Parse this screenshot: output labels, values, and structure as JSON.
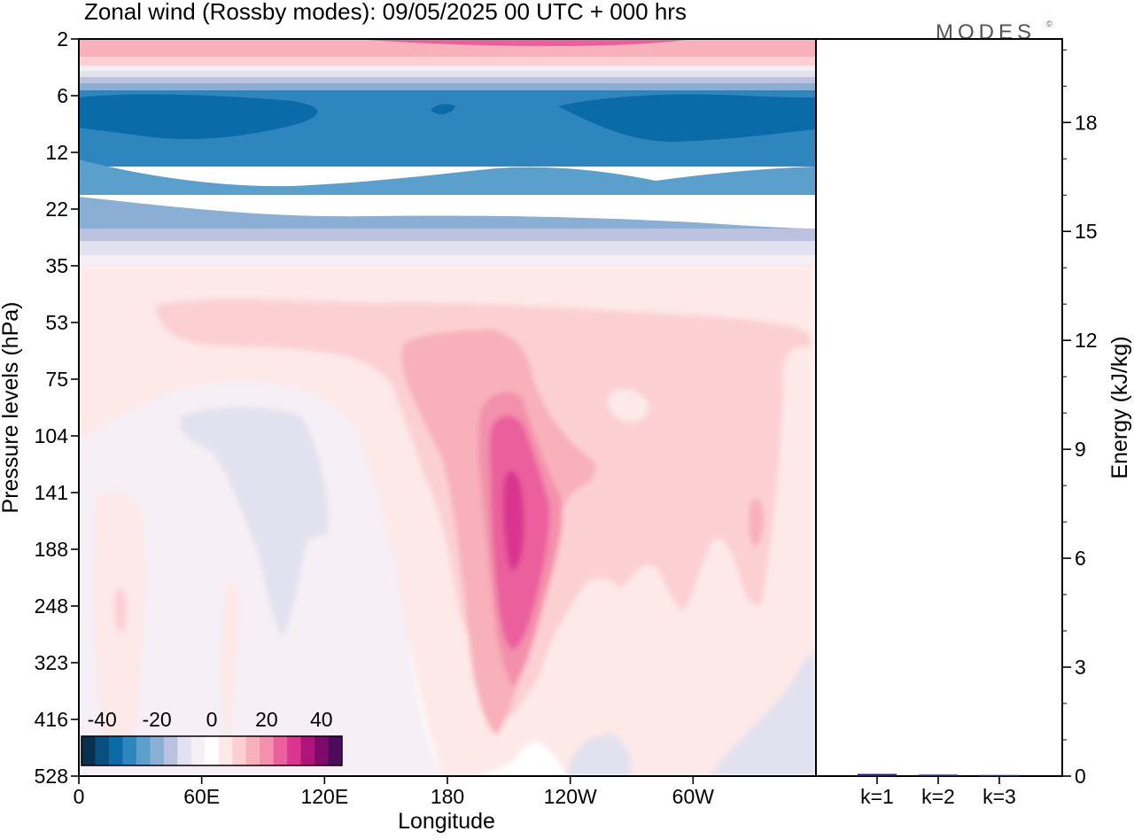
{
  "title": "Zonal wind (Rossby modes):  09/05/2025  00 UTC  + 000 hrs",
  "logo": "MODES",
  "logo_mark": "©",
  "colors": {
    "frame": "#000000",
    "energy_bar": "#1a237e"
  },
  "chart_data": [
    {
      "type": "heatmap",
      "xlabel": "Longitude",
      "ylabel": "Pressure levels (hPa)",
      "x_ticks": [
        {
          "label": "0",
          "lon": 0
        },
        {
          "label": "60E",
          "lon": 60
        },
        {
          "label": "120E",
          "lon": 120
        },
        {
          "label": "180",
          "lon": 180
        },
        {
          "label": "120W",
          "lon": 240
        },
        {
          "label": "60W",
          "lon": 300
        }
      ],
      "xlim": [
        0,
        360
      ],
      "y_ticks": [
        "2",
        "6",
        "12",
        "22",
        "35",
        "53",
        "75",
        "104",
        "141",
        "188",
        "248",
        "323",
        "416",
        "528"
      ],
      "colorbar": {
        "labels": [
          "-40",
          "-20",
          "0",
          "20",
          "40"
        ],
        "levels": [
          -45,
          -40,
          -35,
          -30,
          -25,
          -20,
          -15,
          -10,
          -5,
          0,
          5,
          10,
          15,
          20,
          25,
          30,
          35,
          40,
          45
        ],
        "colors": [
          "#08304f",
          "#0a4f80",
          "#0b6ba8",
          "#2f86bf",
          "#5b9fcc",
          "#8aaed4",
          "#bcc1df",
          "#e2e1ef",
          "#f6eff5",
          "#ffffff",
          "#fde9e8",
          "#fcd0d3",
          "#f8b0ba",
          "#f390ac",
          "#ea5f9c",
          "#d9358f",
          "#b0137d",
          "#7e0a6c",
          "#4d0b5e"
        ]
      },
      "features": [
        {
          "name": "negative-jet-core",
          "lon": [
            0,
            360
          ],
          "level_hPa": [
            6,
            12
          ],
          "value": -30
        },
        {
          "name": "upper-positive-band",
          "lon": [
            0,
            360
          ],
          "level_hPa": [
            2,
            3
          ],
          "value": 15
        },
        {
          "name": "positive-jet-maximum",
          "lon": 196,
          "level_hPa": 160,
          "value": 30
        }
      ]
    },
    {
      "type": "bar",
      "ylabel": "Energy (kJ/kg)",
      "categories": [
        "k=1",
        "k=2",
        "k=3"
      ],
      "values": [
        0.06,
        0.04,
        0.03
      ],
      "ylim": [
        0,
        20.3
      ],
      "y_ticks": [
        "0",
        "3",
        "6",
        "9",
        "12",
        "15",
        "18"
      ]
    }
  ]
}
